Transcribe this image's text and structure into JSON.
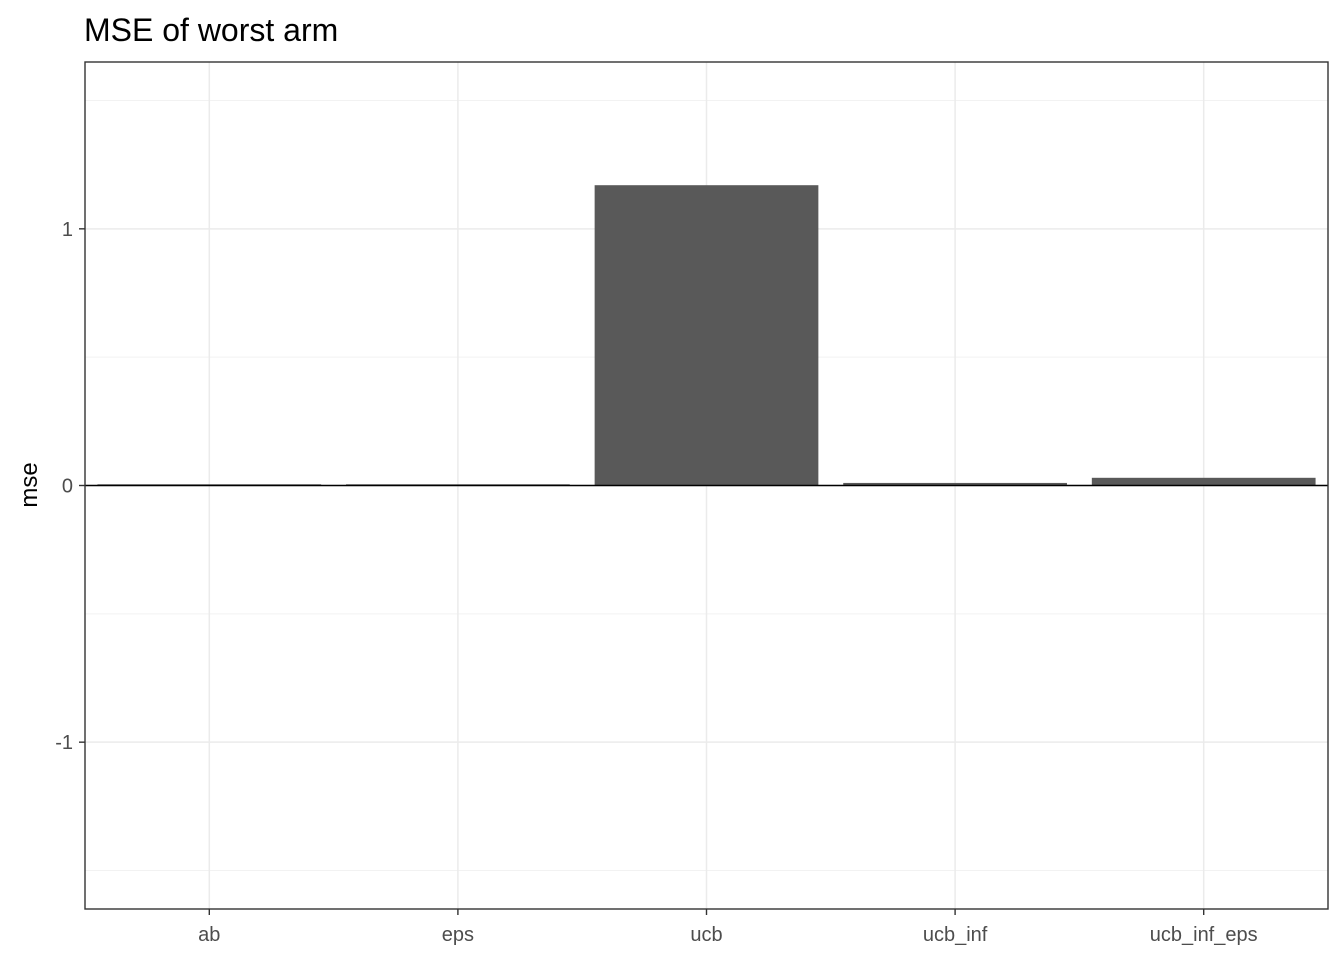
{
  "chart_data": {
    "type": "bar",
    "title": "MSE of worst arm",
    "xlabel": "",
    "ylabel": "mse",
    "categories": [
      "ab",
      "eps",
      "ucb",
      "ucb_inf",
      "ucb_inf_eps"
    ],
    "values": [
      0.003,
      0.004,
      1.17,
      0.01,
      0.03
    ],
    "ylim": [
      -1.65,
      1.65
    ],
    "yticks": [
      -1,
      0,
      1
    ],
    "ytick_labels": [
      "-1",
      "0",
      "1"
    ],
    "grid": true,
    "bar_color": "#595959",
    "zero_line": true
  }
}
